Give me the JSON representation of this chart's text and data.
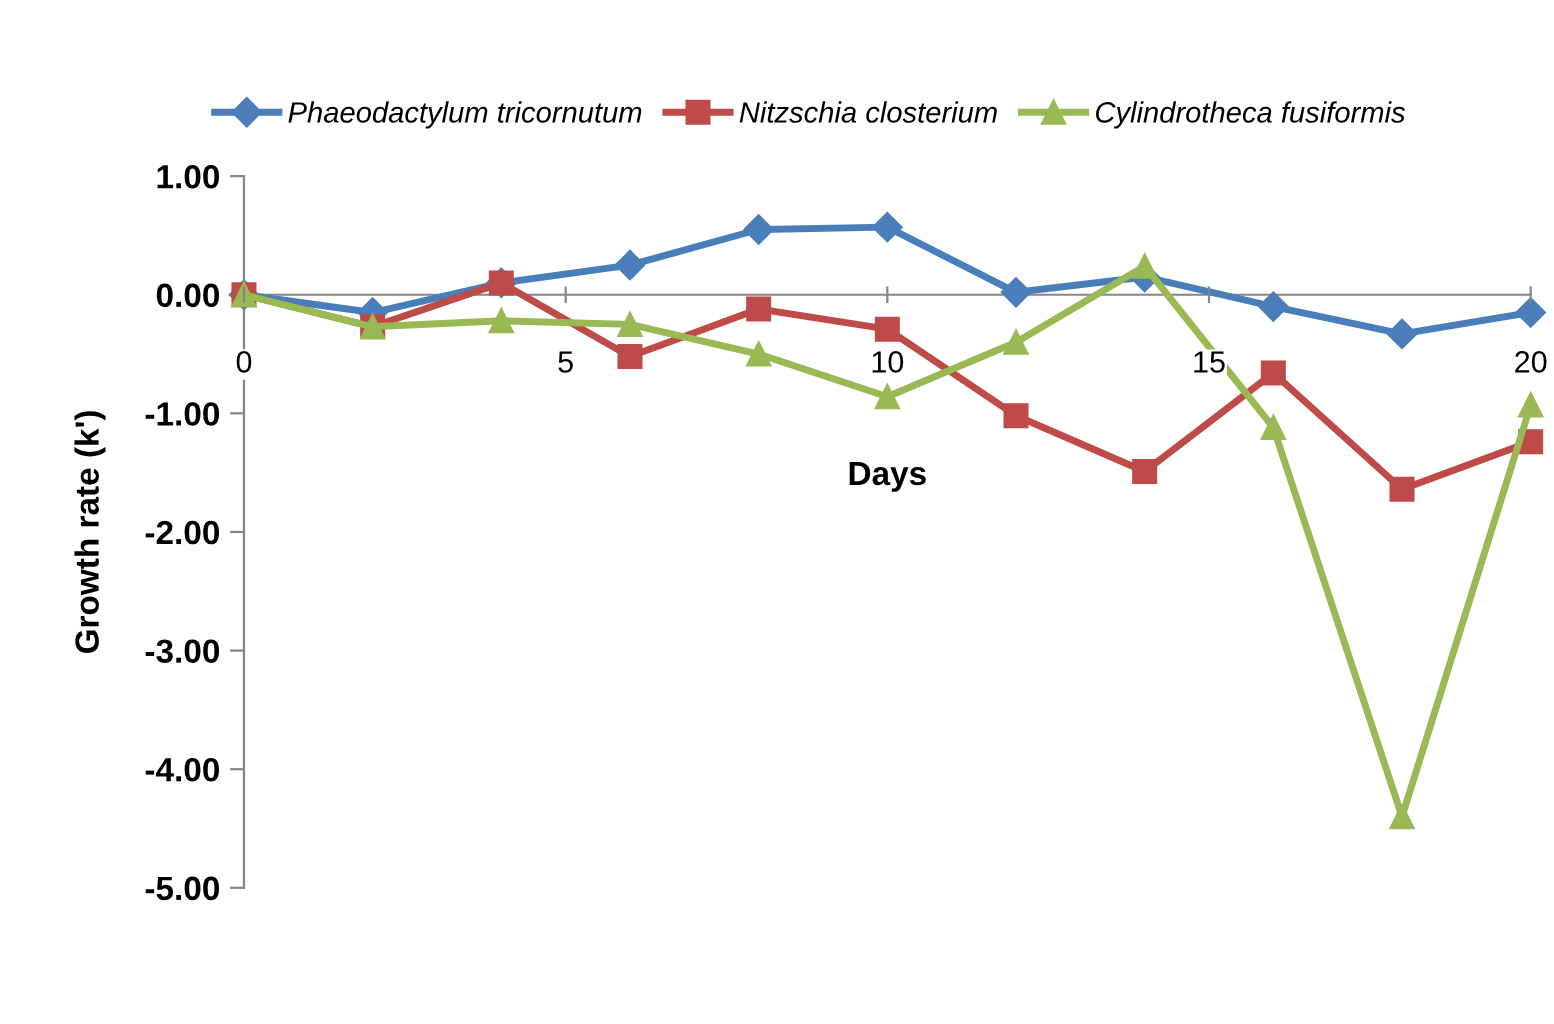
{
  "chart_data": {
    "type": "line",
    "xlabel": "Days",
    "ylabel": "Growth rate (k')",
    "x": [
      0,
      2,
      4,
      6,
      8,
      10,
      12,
      14,
      16,
      18,
      20
    ],
    "series": [
      {
        "name": "Phaeodactylum tricornutum",
        "color": "#4a7ebb",
        "marker": "diamond",
        "values": [
          0,
          -0.15,
          0.1,
          0.25,
          0.55,
          0.57,
          0.02,
          0.15,
          -0.1,
          -0.33,
          -0.15
        ]
      },
      {
        "name": "Nitzschia closterium",
        "color": "#be4b48",
        "marker": "square",
        "values": [
          0,
          -0.27,
          0.1,
          -0.52,
          -0.12,
          -0.29,
          -1.02,
          -1.49,
          -0.66,
          -1.64,
          -1.24
        ]
      },
      {
        "name": "Cylindrotheca fusiformis",
        "color": "#98b954",
        "marker": "triangle",
        "values": [
          0,
          -0.27,
          -0.22,
          -0.25,
          -0.5,
          -0.86,
          -0.4,
          0.24,
          -1.12,
          -4.4,
          -0.93
        ]
      }
    ],
    "xlim": [
      0,
      20
    ],
    "xticks": [
      0,
      5,
      10,
      15,
      20
    ],
    "ylim": [
      -5,
      1
    ],
    "yticks": [
      {
        "value": 1,
        "label": "1.00"
      },
      {
        "value": 0,
        "label": "0.00"
      },
      {
        "value": -1,
        "label": "-1.00"
      },
      {
        "value": -2,
        "label": "-2.00"
      },
      {
        "value": -3,
        "label": "-3.00"
      },
      {
        "value": -4,
        "label": "-4.00"
      },
      {
        "value": -5,
        "label": "-5.00"
      }
    ],
    "grid": false,
    "legend": "top",
    "line_style": "solid"
  }
}
